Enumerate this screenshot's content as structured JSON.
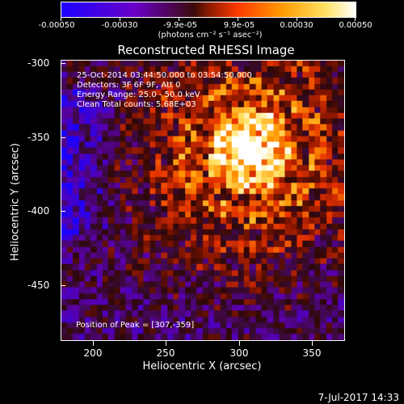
{
  "colorbar": {
    "tick_labels": [
      "-0.00050",
      "-0.00030",
      "-9.9e-05",
      "9.9e-05",
      "0.00030",
      "0.00050"
    ],
    "units": "(photons cm⁻² s⁻¹ asec⁻²)"
  },
  "plot": {
    "title": "Reconstructed RHESSI Image",
    "info_lines": [
      "25-Oct-2014 03:44:50.000 to 03:54:50.000",
      "Detectors: 3F 6F 9F, Att 0",
      "Energy Range: 25.0 - 50.0 keV",
      "Clean    Total counts: 5.68E+03"
    ],
    "peak_text": "Position of Peak = [307,-359]"
  },
  "axes": {
    "xlabel": "Heliocentric X (arcsec)",
    "ylabel": "Heliocentric Y (arcsec)",
    "xticks": [
      "200",
      "250",
      "300",
      "350"
    ],
    "yticks": [
      "-300",
      "-350",
      "-400",
      "-450"
    ]
  },
  "footer": {
    "timestamp": "7-Jul-2017 14:33"
  },
  "chart_data": {
    "type": "heatmap",
    "title": "Reconstructed RHESSI Image",
    "xlabel": "Heliocentric X (arcsec)",
    "ylabel": "Heliocentric Y (arcsec)",
    "xlim": [
      178,
      372
    ],
    "ylim": [
      -490,
      -297
    ],
    "colorbar_range": [
      -0.0005,
      0.0005
    ],
    "peak": [
      307,
      -359
    ],
    "colors": {
      "low": "#1b00ff",
      "mid": "#8a1a00",
      "high": "#ffffff"
    }
  }
}
